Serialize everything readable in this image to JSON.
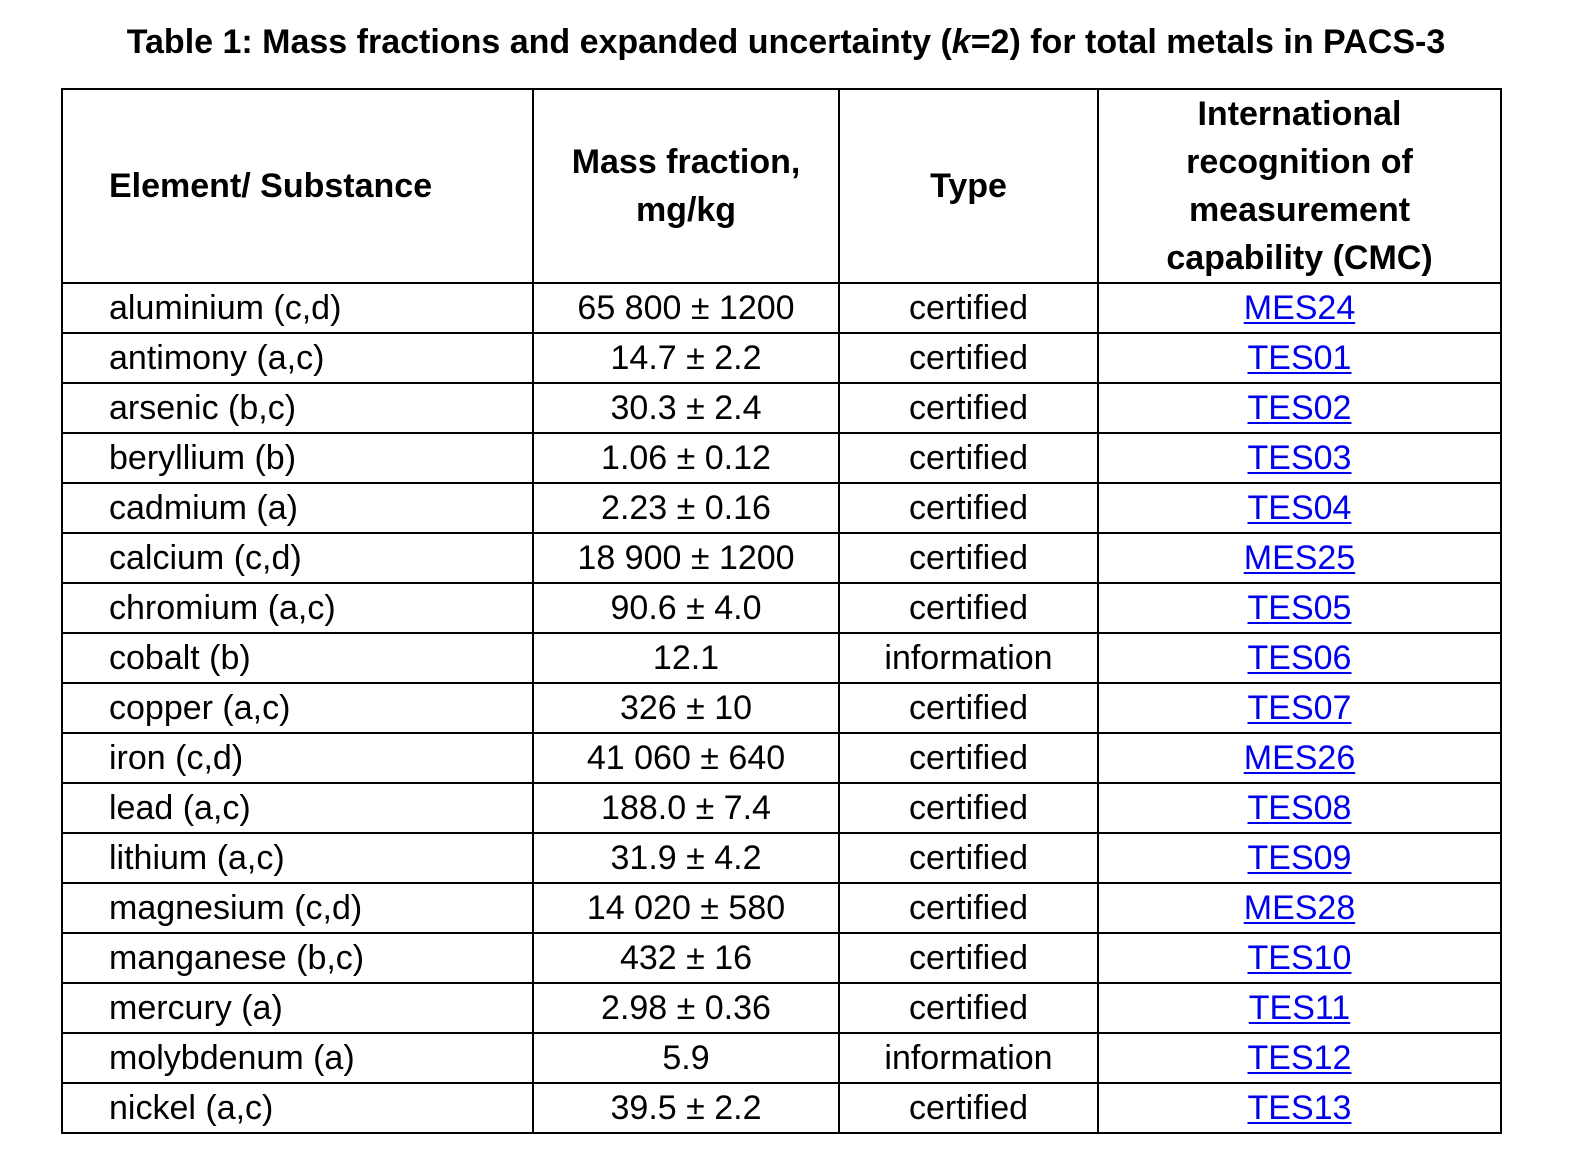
{
  "caption": {
    "prefix": "Table 1: Mass fractions and expanded uncertainty (",
    "k": "k",
    "suffix": "=2) for total metals in PACS-3"
  },
  "headers": {
    "element": "Element/ Substance",
    "mass_fraction_line1": "Mass fraction,",
    "mass_fraction_line2": "mg/kg",
    "type": "Type",
    "cmc_line1": "International",
    "cmc_line2": "recognition of",
    "cmc_line3": "measurement",
    "cmc_line4": "capability (CMC)"
  },
  "rows": [
    {
      "element": "aluminium (c,d)",
      "value": "65 800 ± 1200",
      "type": "certified",
      "cmc": "MES24"
    },
    {
      "element": "antimony (a,c)",
      "value": "14.7 ± 2.2",
      "type": "certified",
      "cmc": "TES01"
    },
    {
      "element": "arsenic (b,c)",
      "value": "30.3 ± 2.4",
      "type": "certified",
      "cmc": "TES02"
    },
    {
      "element": "beryllium (b)",
      "value": "1.06 ± 0.12",
      "type": "certified",
      "cmc": "TES03"
    },
    {
      "element": "cadmium (a)",
      "value": "2.23 ± 0.16",
      "type": "certified",
      "cmc": "TES04"
    },
    {
      "element": "calcium (c,d)",
      "value": "18 900 ± 1200",
      "type": "certified",
      "cmc": "MES25"
    },
    {
      "element": "chromium (a,c)",
      "value": "90.6 ± 4.0",
      "type": "certified",
      "cmc": "TES05"
    },
    {
      "element": "cobalt (b)",
      "value": "12.1",
      "type": "information",
      "cmc": "TES06"
    },
    {
      "element": "copper (a,c)",
      "value": "326 ± 10",
      "type": "certified",
      "cmc": "TES07"
    },
    {
      "element": "iron (c,d)",
      "value": "41 060 ± 640",
      "type": "certified",
      "cmc": "MES26"
    },
    {
      "element": "lead (a,c)",
      "value": "188.0 ± 7.4",
      "type": "certified",
      "cmc": "TES08"
    },
    {
      "element": "lithium (a,c)",
      "value": "31.9 ± 4.2",
      "type": "certified",
      "cmc": "TES09"
    },
    {
      "element": "magnesium (c,d)",
      "value": "14 020 ± 580",
      "type": "certified",
      "cmc": "MES28"
    },
    {
      "element": "manganese (b,c)",
      "value": "432 ± 16",
      "type": "certified",
      "cmc": "TES10"
    },
    {
      "element": "mercury (a)",
      "value": "2.98 ± 0.36",
      "type": "certified",
      "cmc": "TES11"
    },
    {
      "element": "molybdenum (a)",
      "value": "5.9",
      "type": "information",
      "cmc": "TES12"
    },
    {
      "element": "nickel (a,c)",
      "value": "39.5 ± 2.2",
      "type": "certified",
      "cmc": "TES13"
    }
  ],
  "colors": {
    "link": "#0000ee",
    "border": "#000000",
    "text": "#000000",
    "background": "#ffffff"
  }
}
